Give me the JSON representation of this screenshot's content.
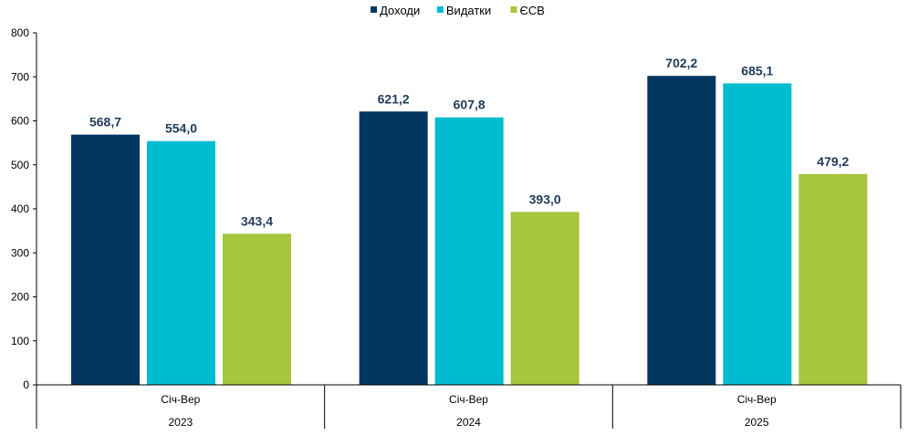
{
  "chart_data": {
    "type": "bar",
    "categories": [
      {
        "period": "Січ-Вер",
        "year": "2023"
      },
      {
        "period": "Січ-Вер",
        "year": "2024"
      },
      {
        "period": "Січ-Вер",
        "year": "2025"
      }
    ],
    "series": [
      {
        "name": "Доходи",
        "color": "#003660",
        "values": [
          568.7,
          621.2,
          702.2
        ],
        "labels": [
          "568,7",
          "621,2",
          "702,2"
        ]
      },
      {
        "name": "Видатки",
        "color": "#00bccf",
        "values": [
          554.0,
          607.8,
          685.1
        ],
        "labels": [
          "554,0",
          "607,8",
          "685,1"
        ]
      },
      {
        "name": "ЄСВ",
        "color": "#a6c63c",
        "values": [
          343.4,
          393.0,
          479.2
        ],
        "labels": [
          "343,4",
          "393,0",
          "479,2"
        ]
      }
    ],
    "ylim": [
      0,
      800
    ],
    "yticks": [
      0,
      100,
      200,
      300,
      400,
      500,
      600,
      700,
      800
    ],
    "legend_position": "top-center",
    "grid": false
  }
}
